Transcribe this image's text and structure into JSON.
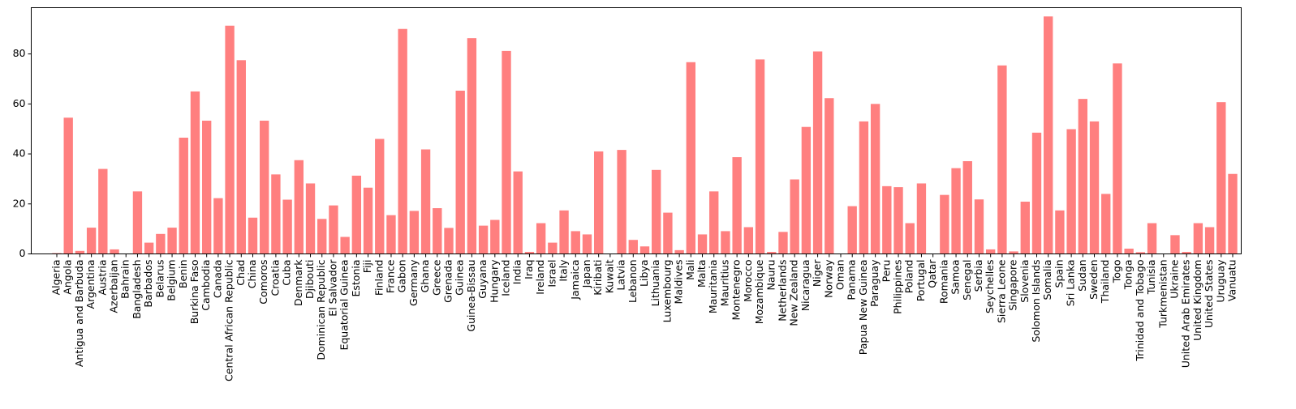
{
  "chart_data": {
    "type": "bar",
    "title": "",
    "xlabel": "",
    "ylabel": "",
    "ylim": [
      0,
      100
    ],
    "yticks": [
      0,
      20,
      40,
      60,
      80
    ],
    "grid": false,
    "bar_color": "#ff7f7f",
    "categories": [
      "Algeria",
      "Angola",
      "Antigua and Barbuda",
      "Argentina",
      "Austria",
      "Azerbaijan",
      "Bahrain",
      "Bangladesh",
      "Barbados",
      "Belarus",
      "Belgium",
      "Benin",
      "Burkina Faso",
      "Cambodia",
      "Canada",
      "Central African Republic",
      "Chad",
      "China",
      "Comoros",
      "Croatia",
      "Cuba",
      "Denmark",
      "Djibouti",
      "Dominican Republic",
      "El Salvador",
      "Equatorial Guinea",
      "Estonia",
      "Fiji",
      "Finland",
      "France",
      "Gabon",
      "Germany",
      "Ghana",
      "Greece",
      "Grenada",
      "Guinea",
      "Guinea-Bissau",
      "Guyana",
      "Hungary",
      "Iceland",
      "India",
      "Iraq",
      "Ireland",
      "Israel",
      "Italy",
      "Jamaica",
      "Japan",
      "Kiribati",
      "Kuwait",
      "Latvia",
      "Lebanon",
      "Libya",
      "Lithuania",
      "Luxembourg",
      "Maldives",
      "Mali",
      "Malta",
      "Mauritania",
      "Mauritius",
      "Montenegro",
      "Morocco",
      "Mozambique",
      "Nauru",
      "Netherlands",
      "New Zealand",
      "Nicaragua",
      "Niger",
      "Norway",
      "Oman",
      "Panama",
      "Papua New Guinea",
      "Paraguay",
      "Peru",
      "Philippines",
      "Poland",
      "Portugal",
      "Qatar",
      "Romania",
      "Samoa",
      "Senegal",
      "Serbia",
      "Seychelles",
      "Sierra Leone",
      "Singapore",
      "Slovenia",
      "Solomon Islands",
      "Somalia",
      "Spain",
      "Sri Lanka",
      "Sudan",
      "Sweden",
      "Thailand",
      "Togo",
      "Tonga",
      "Trinidad and Tobago",
      "Tunisia",
      "Turkmenistan",
      "Ukraine",
      "United Arab Emirates",
      "United Kingdom",
      "United States",
      "Uruguay",
      "Vanuatu"
    ],
    "values": [
      0.3,
      54.5,
      1.2,
      10.5,
      34.0,
      1.8,
      0.1,
      25.0,
      4.5,
      8.0,
      10.5,
      46.5,
      65.0,
      53.3,
      22.3,
      91.3,
      77.5,
      14.5,
      53.3,
      31.8,
      21.7,
      37.5,
      28.2,
      14.0,
      19.4,
      6.8,
      31.3,
      26.5,
      46.0,
      15.5,
      90.0,
      17.2,
      41.8,
      18.3,
      10.4,
      65.3,
      86.3,
      11.3,
      13.6,
      81.2,
      33.0,
      0.8,
      12.3,
      4.5,
      17.4,
      9.1,
      7.8,
      41.0,
      0.1,
      41.6,
      5.6,
      3.0,
      33.6,
      16.5,
      1.5,
      76.7,
      7.8,
      25.0,
      9.1,
      38.7,
      10.7,
      77.8,
      0.8,
      8.8,
      29.8,
      50.8,
      81.0,
      62.3,
      0.1,
      19.1,
      53.0,
      60.0,
      27.1,
      26.7,
      12.3,
      28.2,
      0.1,
      23.6,
      34.3,
      37.1,
      21.8,
      1.8,
      75.4,
      1.0,
      20.9,
      48.5,
      95.0,
      17.4,
      49.9,
      62.0,
      53.0,
      24.0,
      76.2,
      2.1,
      0.7,
      12.3,
      0.1,
      7.5,
      0.8,
      12.3,
      10.7,
      60.7,
      32.0
    ]
  }
}
